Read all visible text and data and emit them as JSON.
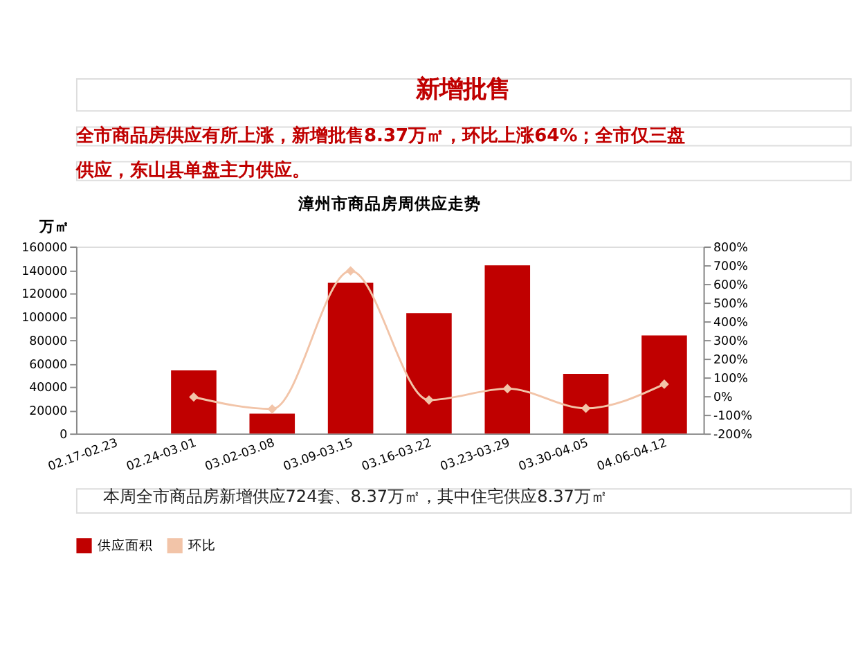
{
  "chart_data": {
    "type": "bar",
    "title": "漳州市商品房周供应走势",
    "ylabel": "万㎡",
    "annotations": [
      "新增批售",
      "全市商品房供应有所上涨，新增批售8.37万㎡，环比上涨64%；全市仅三盘",
      "供应，东山县单盘主力供应。",
      "本周全市商品房新增供应724套、8.37万㎡，其中住宅供应8.37万㎡"
    ],
    "categories": [
      "02.17-02.23",
      "02.24-03.01",
      "03.02-03.08",
      "03.09-03.15",
      "03.16-03.22",
      "03.23-03.29",
      "03.30-04.05",
      "04.06-04.12"
    ],
    "series": [
      {
        "name": "供应面积",
        "color": "#c00000",
        "values": [
          null,
          54000,
          17000,
          129000,
          103000,
          144000,
          51000,
          84000
        ]
      },
      {
        "name": "环比",
        "type": "line",
        "axis": "y2",
        "color": "#f2c4a8",
        "marker": "diamond",
        "values": [
          null,
          -5,
          -69,
          670,
          -21,
          40,
          -65,
          64
        ]
      }
    ],
    "ylim": [
      0,
      160000
    ],
    "yticks": [
      0,
      20000,
      40000,
      60000,
      80000,
      100000,
      120000,
      140000,
      160000
    ],
    "y2lim": [
      -200,
      800
    ],
    "y2ticks": [
      {
        "value": -200,
        "label": "-200%"
      },
      {
        "value": -100,
        "label": "-100%"
      },
      {
        "value": 0,
        "label": "0%"
      },
      {
        "value": 100,
        "label": "100%"
      },
      {
        "value": 200,
        "label": "200%"
      },
      {
        "value": 300,
        "label": "300%"
      },
      {
        "value": 400,
        "label": "400%"
      },
      {
        "value": 500,
        "label": "500%"
      },
      {
        "value": 600,
        "label": "600%"
      },
      {
        "value": 700,
        "label": "700%"
      },
      {
        "value": 800,
        "label": "800%"
      }
    ],
    "grid": false,
    "legend": "bottom"
  }
}
